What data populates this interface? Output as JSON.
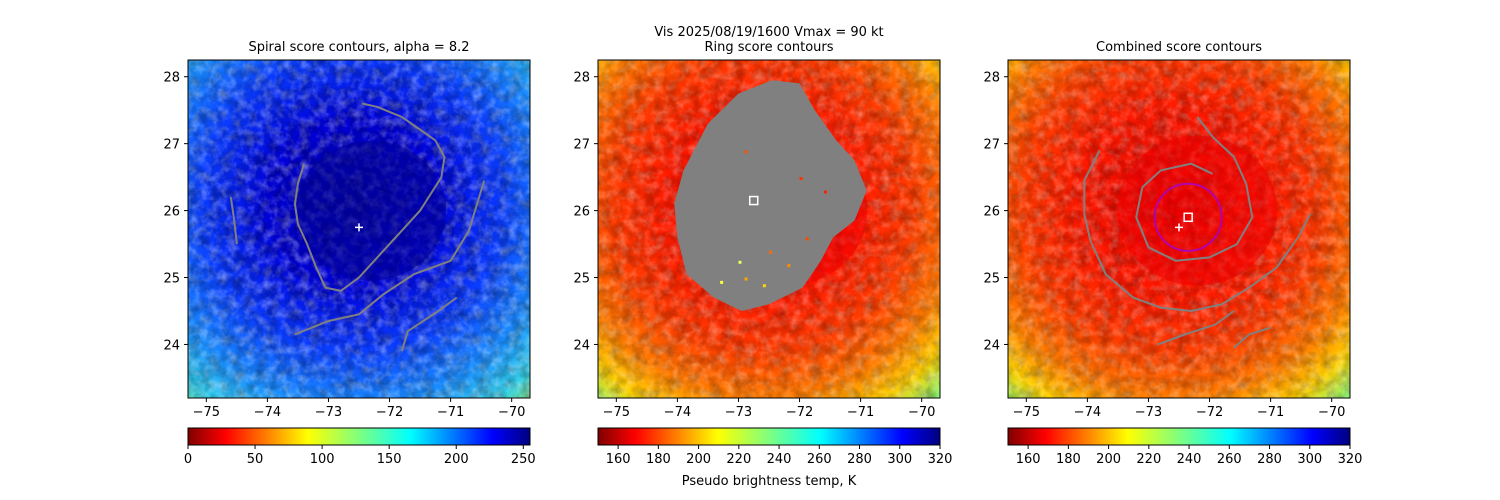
{
  "figure": {
    "suptitle_line1": "Vis  2025/08/19/1600    Vmax = 90 kt",
    "colorbar_label": "Pseudo brightness temp, K"
  },
  "chart_data": [
    {
      "type": "heatmap",
      "title": "Spiral score contours, alpha =  8.2",
      "xlim": [
        -75.3,
        -69.7
      ],
      "ylim": [
        23.2,
        28.25
      ],
      "xticks": [
        -75,
        -74,
        -73,
        -72,
        -71,
        -70
      ],
      "yticks": [
        24,
        25,
        26,
        27,
        28
      ],
      "colormap": "jet",
      "colorbar": {
        "min": 0,
        "max": 255,
        "ticks": [
          0,
          50,
          100,
          150,
          200,
          250
        ],
        "reversed": false
      },
      "center_marker": {
        "symbol": "+",
        "lon": -72.5,
        "lat": 25.75,
        "color": "#ffffff"
      },
      "contour_color": "#808080",
      "contours": [
        [
          [
            -73.4,
            26.7
          ],
          [
            -73.5,
            26.4
          ],
          [
            -73.55,
            26.1
          ],
          [
            -73.5,
            25.8
          ],
          [
            -73.35,
            25.5
          ],
          [
            -73.2,
            25.15
          ],
          [
            -73.05,
            24.85
          ],
          [
            -72.8,
            24.8
          ],
          [
            -72.5,
            25.0
          ],
          [
            -72.2,
            25.3
          ],
          [
            -71.9,
            25.6
          ],
          [
            -71.5,
            26.0
          ],
          [
            -71.15,
            26.5
          ],
          [
            -71.1,
            26.8
          ],
          [
            -71.25,
            27.05
          ],
          [
            -71.8,
            27.4
          ],
          [
            -72.2,
            27.55
          ],
          [
            -72.45,
            27.6
          ]
        ],
        [
          [
            -73.55,
            24.15
          ],
          [
            -73.0,
            24.35
          ],
          [
            -72.5,
            24.45
          ],
          [
            -72.1,
            24.75
          ],
          [
            -71.6,
            25.05
          ],
          [
            -71.0,
            25.25
          ],
          [
            -70.7,
            25.7
          ],
          [
            -70.45,
            26.45
          ]
        ],
        [
          [
            -71.8,
            23.9
          ],
          [
            -71.7,
            24.2
          ],
          [
            -71.2,
            24.5
          ],
          [
            -70.9,
            24.7
          ]
        ],
        [
          [
            -74.5,
            25.5
          ],
          [
            -74.55,
            25.9
          ],
          [
            -74.6,
            26.2
          ]
        ]
      ]
    },
    {
      "type": "heatmap",
      "title": "Ring score contours",
      "xlim": [
        -75.3,
        -69.7
      ],
      "ylim": [
        23.2,
        28.25
      ],
      "xticks": [
        -75,
        -74,
        -73,
        -72,
        -71,
        -70
      ],
      "yticks": [
        24,
        25,
        26,
        27,
        28
      ],
      "colormap": "jet_r",
      "colorbar": {
        "min": 150,
        "max": 320,
        "ticks": [
          160,
          180,
          200,
          220,
          240,
          260,
          280,
          300,
          320
        ],
        "reversed": true
      },
      "center_marker": {
        "symbol": "square",
        "lon": -72.75,
        "lat": 26.15,
        "color": "#ffffff"
      },
      "masked_region_color": "#808080",
      "masked_region": [
        [
          -73.9,
          26.6
        ],
        [
          -73.5,
          27.3
        ],
        [
          -73.0,
          27.75
        ],
        [
          -72.45,
          27.95
        ],
        [
          -72.0,
          27.9
        ],
        [
          -71.75,
          27.5
        ],
        [
          -71.4,
          27.05
        ],
        [
          -71.1,
          26.75
        ],
        [
          -70.9,
          26.3
        ],
        [
          -71.1,
          25.85
        ],
        [
          -71.45,
          25.6
        ],
        [
          -71.65,
          25.25
        ],
        [
          -71.95,
          24.85
        ],
        [
          -72.5,
          24.6
        ],
        [
          -72.95,
          24.5
        ],
        [
          -73.4,
          24.7
        ],
        [
          -73.85,
          25.05
        ],
        [
          -74.0,
          25.6
        ],
        [
          -74.05,
          26.1
        ]
      ]
    },
    {
      "type": "heatmap",
      "title": "Combined score contours",
      "xlim": [
        -75.3,
        -69.7
      ],
      "ylim": [
        23.2,
        28.25
      ],
      "xticks": [
        -75,
        -74,
        -73,
        -72,
        -71,
        -70
      ],
      "yticks": [
        24,
        25,
        26,
        27,
        28
      ],
      "colormap": "jet_r",
      "colorbar": {
        "min": 150,
        "max": 320,
        "ticks": [
          160,
          180,
          200,
          220,
          240,
          260,
          280,
          300,
          320
        ],
        "reversed": true
      },
      "center_marker": {
        "symbol": "+",
        "lon": -72.5,
        "lat": 25.75,
        "color": "#ffffff"
      },
      "square_marker": {
        "lon": -72.35,
        "lat": 25.9,
        "color": "#ffffff"
      },
      "circle": {
        "lon": -72.35,
        "lat": 25.9,
        "radius_deg": 0.55,
        "color": "#b000b0"
      },
      "contour_color": "#808080",
      "contours": [
        [
          [
            -72.2,
            27.4
          ],
          [
            -71.95,
            27.1
          ],
          [
            -71.6,
            26.8
          ],
          [
            -71.4,
            26.4
          ],
          [
            -71.3,
            25.9
          ],
          [
            -71.55,
            25.5
          ],
          [
            -72.0,
            25.3
          ],
          [
            -72.55,
            25.25
          ],
          [
            -73.0,
            25.45
          ],
          [
            -73.2,
            25.9
          ],
          [
            -73.1,
            26.35
          ],
          [
            -72.8,
            26.6
          ],
          [
            -72.3,
            26.7
          ],
          [
            -71.95,
            26.55
          ]
        ],
        [
          [
            -73.8,
            26.9
          ],
          [
            -74.05,
            26.45
          ],
          [
            -74.05,
            25.95
          ],
          [
            -73.95,
            25.55
          ],
          [
            -73.7,
            25.05
          ],
          [
            -73.25,
            24.7
          ],
          [
            -72.8,
            24.55
          ],
          [
            -72.3,
            24.5
          ],
          [
            -71.8,
            24.6
          ],
          [
            -71.35,
            24.85
          ],
          [
            -70.9,
            25.15
          ],
          [
            -70.55,
            25.6
          ],
          [
            -70.35,
            25.95
          ]
        ],
        [
          [
            -72.85,
            24.0
          ],
          [
            -72.4,
            24.15
          ],
          [
            -71.9,
            24.3
          ],
          [
            -71.6,
            24.5
          ]
        ],
        [
          [
            -71.6,
            23.95
          ],
          [
            -71.35,
            24.15
          ],
          [
            -71.0,
            24.25
          ]
        ]
      ]
    }
  ]
}
